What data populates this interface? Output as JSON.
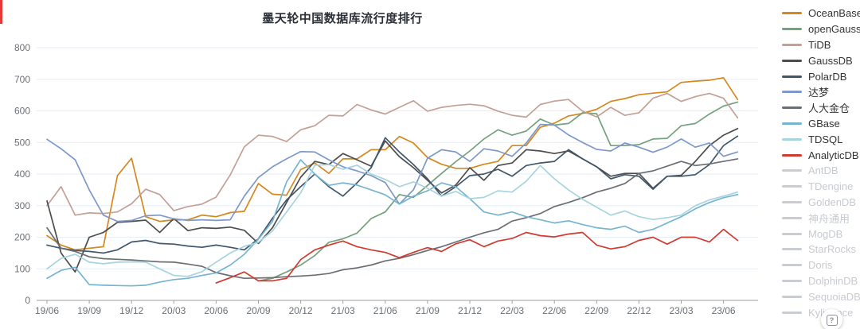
{
  "title": "墨天轮中国数据库流行度排行",
  "help_button": {
    "glyph": "?"
  },
  "axis": {
    "y_label_color": "#6b7075",
    "grid_color": "#e6edf7",
    "axis_color": "#9aa0a6"
  },
  "chart_data": {
    "type": "line",
    "title": "墨天轮中国数据库流行度排行",
    "xlabel": "",
    "ylabel": "",
    "ylim": [
      0,
      800
    ],
    "y_ticks": [
      0,
      100,
      200,
      300,
      400,
      500,
      600,
      700,
      800
    ],
    "grid": true,
    "legend_position": "right",
    "x": [
      "19/06",
      "19/07",
      "19/08",
      "19/09",
      "19/10",
      "19/11",
      "19/12",
      "20/01",
      "20/02",
      "20/03",
      "20/04",
      "20/05",
      "20/06",
      "20/07",
      "20/08",
      "20/09",
      "20/10",
      "20/11",
      "20/12",
      "21/01",
      "21/02",
      "21/03",
      "21/04",
      "21/05",
      "21/06",
      "21/07",
      "21/08",
      "21/09",
      "21/10",
      "21/11",
      "21/12",
      "22/01",
      "22/02",
      "22/03",
      "22/04",
      "22/05",
      "22/06",
      "22/07",
      "22/08",
      "22/09",
      "22/10",
      "22/11",
      "22/12",
      "23/01",
      "23/02",
      "23/03",
      "23/04",
      "23/05",
      "23/06",
      "23/07"
    ],
    "x_tick_labels": [
      "19/06",
      "19/09",
      "19/12",
      "20/03",
      "20/06",
      "20/09",
      "20/12",
      "21/03",
      "21/06",
      "21/09",
      "21/12",
      "22/03",
      "22/06",
      "22/09",
      "22/12",
      "23/03",
      "23/06"
    ],
    "series": [
      {
        "name": "OceanBase",
        "color": "#d4881e",
        "enabled": true,
        "values": [
          205,
          175,
          160,
          165,
          170,
          395,
          450,
          265,
          250,
          255,
          255,
          270,
          265,
          278,
          282,
          370,
          336,
          333,
          414,
          435,
          402,
          448,
          448,
          477,
          477,
          519,
          498,
          452,
          431,
          418,
          418,
          431,
          440,
          490,
          490,
          548,
          561,
          584,
          592,
          605,
          630,
          639,
          651,
          656,
          660,
          690,
          694,
          697,
          705,
          636
        ]
      },
      {
        "name": "openGauss",
        "color": "#74a17f",
        "enabled": true,
        "values": [
          null,
          null,
          null,
          null,
          null,
          null,
          null,
          null,
          null,
          null,
          null,
          null,
          null,
          null,
          null,
          62,
          70,
          90,
          112,
          142,
          184,
          195,
          213,
          259,
          280,
          335,
          326,
          364,
          402,
          439,
          473,
          511,
          540,
          523,
          536,
          574,
          555,
          560,
          594,
          591,
          490,
          490,
          493,
          511,
          513,
          553,
          560,
          590,
          615,
          628
        ]
      },
      {
        "name": "TiDB",
        "color": "#c3a096",
        "enabled": true,
        "values": [
          300,
          360,
          270,
          277,
          275,
          280,
          306,
          352,
          335,
          284,
          297,
          305,
          327,
          397,
          486,
          523,
          519,
          503,
          540,
          553,
          586,
          584,
          620,
          603,
          590,
          611,
          632,
          599,
          611,
          617,
          621,
          616,
          599,
          586,
          580,
          620,
          631,
          636,
          599,
          581,
          611,
          586,
          594,
          640,
          655,
          630,
          645,
          655,
          640,
          578
        ]
      },
      {
        "name": "GaussDB",
        "color": "#4d4d4d",
        "enabled": true,
        "values": [
          315,
          150,
          90,
          200,
          215,
          247,
          250,
          254,
          215,
          259,
          221,
          230,
          228,
          232,
          222,
          180,
          230,
          310,
          390,
          440,
          430,
          465,
          445,
          425,
          505,
          455,
          420,
          380,
          340,
          365,
          420,
          380,
          427,
          435,
          477,
          473,
          465,
          473,
          448,
          423,
          393,
          402,
          402,
          355,
          393,
          396,
          440,
          490,
          523,
          544
        ]
      },
      {
        "name": "PolarDB",
        "color": "#40566b",
        "enabled": true,
        "values": [
          175,
          165,
          158,
          155,
          150,
          160,
          185,
          190,
          180,
          178,
          172,
          168,
          175,
          168,
          160,
          195,
          260,
          318,
          360,
          400,
          360,
          330,
          372,
          420,
          515,
          470,
          430,
          385,
          330,
          360,
          395,
          400,
          415,
          393,
          427,
          435,
          440,
          477,
          448,
          423,
          385,
          398,
          393,
          352,
          393,
          393,
          398,
          430,
          490,
          520
        ]
      },
      {
        "name": "达梦",
        "color": "#7e99c9",
        "enabled": true,
        "values": [
          510,
          480,
          445,
          350,
          270,
          250,
          253,
          268,
          270,
          258,
          253,
          255,
          253,
          255,
          330,
          389,
          423,
          448,
          471,
          470,
          445,
          423,
          410,
          395,
          373,
          305,
          350,
          450,
          477,
          470,
          440,
          480,
          473,
          456,
          498,
          557,
          555,
          524,
          500,
          478,
          473,
          498,
          485,
          469,
          485,
          511,
          485,
          498,
          456,
          470
        ]
      },
      {
        "name": "人大金仓",
        "color": "#6b6e73",
        "enabled": true,
        "values": [
          230,
          165,
          155,
          138,
          132,
          130,
          128,
          125,
          122,
          121,
          115,
          108,
          88,
          78,
          70,
          71,
          72,
          75,
          77,
          80,
          85,
          97,
          103,
          112,
          125,
          133,
          145,
          158,
          170,
          185,
          200,
          214,
          225,
          251,
          262,
          275,
          297,
          310,
          325,
          343,
          355,
          370,
          402,
          410,
          425,
          440,
          427,
          432,
          440,
          448
        ]
      },
      {
        "name": "GBase",
        "color": "#76b4cf",
        "enabled": true,
        "values": [
          70,
          95,
          105,
          50,
          48,
          47,
          46,
          48,
          58,
          66,
          70,
          79,
          87,
          112,
          146,
          194,
          250,
          375,
          445,
          400,
          364,
          372,
          365,
          350,
          334,
          305,
          330,
          347,
          372,
          360,
          322,
          280,
          270,
          280,
          265,
          255,
          245,
          252,
          240,
          230,
          225,
          235,
          215,
          225,
          245,
          265,
          290,
          310,
          325,
          335
        ]
      },
      {
        "name": "TDSQL",
        "color": "#a6d4e0",
        "enabled": true,
        "values": [
          100,
          133,
          146,
          121,
          116,
          121,
          122,
          121,
          100,
          79,
          76,
          91,
          121,
          150,
          171,
          184,
          220,
          280,
          340,
          428,
          430,
          415,
          428,
          400,
          383,
          360,
          375,
          355,
          330,
          345,
          322,
          326,
          347,
          343,
          377,
          427,
          385,
          350,
          320,
          295,
          270,
          283,
          265,
          256,
          262,
          270,
          300,
          318,
          330,
          343
        ]
      },
      {
        "name": "AnalyticDB",
        "color": "#d03a30",
        "enabled": true,
        "values": [
          null,
          null,
          null,
          null,
          null,
          null,
          null,
          null,
          null,
          null,
          null,
          null,
          55,
          72,
          90,
          62,
          62,
          70,
          129,
          160,
          175,
          188,
          170,
          160,
          152,
          135,
          152,
          167,
          155,
          179,
          192,
          170,
          188,
          196,
          215,
          205,
          201,
          210,
          215,
          175,
          163,
          170,
          190,
          200,
          178,
          200,
          200,
          185,
          225,
          190
        ]
      },
      {
        "name": "AntDB",
        "color": "#c9ccd1",
        "enabled": false,
        "values": []
      },
      {
        "name": "TDengine",
        "color": "#c9ccd1",
        "enabled": false,
        "values": []
      },
      {
        "name": "GoldenDB",
        "color": "#c9ccd1",
        "enabled": false,
        "values": []
      },
      {
        "name": "神舟通用",
        "color": "#c9ccd1",
        "enabled": false,
        "values": []
      },
      {
        "name": "MogDB",
        "color": "#c9ccd1",
        "enabled": false,
        "values": []
      },
      {
        "name": "StarRocks",
        "color": "#c9ccd1",
        "enabled": false,
        "values": []
      },
      {
        "name": "Doris",
        "color": "#c9ccd1",
        "enabled": false,
        "values": []
      },
      {
        "name": "DolphinDB",
        "color": "#c9ccd1",
        "enabled": false,
        "values": []
      },
      {
        "name": "SequoiaDB",
        "color": "#c9ccd1",
        "enabled": false,
        "values": []
      },
      {
        "name": "Kyligence",
        "color": "#c9ccd1",
        "enabled": false,
        "values": []
      }
    ]
  }
}
